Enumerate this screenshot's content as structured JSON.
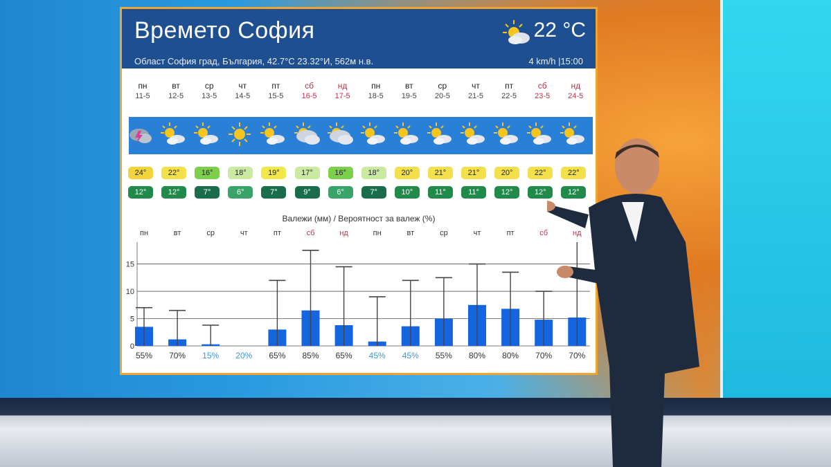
{
  "panel": {
    "title": "Времето София",
    "subtitle": "Област София град, България, 42.7°С 23.32°И, 562м н.в.",
    "current_temp": "22 °C",
    "wind_time": "4 km/h |15:00",
    "current_icon": "sun-cloud-icon"
  },
  "days": [
    {
      "dn": "пн",
      "dd": "11-5",
      "weekend": false,
      "icon": "thunder-cloud-icon",
      "max": "24°",
      "min": "12°",
      "max_color": "#f3d53b",
      "min_color": "#1f8a4a"
    },
    {
      "dn": "вт",
      "dd": "12-5",
      "weekend": false,
      "icon": "sun-cloud-icon",
      "max": "22°",
      "min": "12°",
      "max_color": "#f3e04a",
      "min_color": "#1f8a4a"
    },
    {
      "dn": "ср",
      "dd": "13-5",
      "weekend": false,
      "icon": "sun-cloud-icon",
      "max": "16°",
      "min": "7°",
      "max_color": "#7cd04a",
      "min_color": "#1a6d4a"
    },
    {
      "dn": "чт",
      "dd": "14-5",
      "weekend": false,
      "icon": "sun-icon",
      "max": "18°",
      "min": "6°",
      "max_color": "#c9eaa0",
      "min_color": "#3aa36a"
    },
    {
      "dn": "пт",
      "dd": "15-5",
      "weekend": false,
      "icon": "sun-cloud-icon",
      "max": "19°",
      "min": "7°",
      "max_color": "#f3e84a",
      "min_color": "#1a6d4a"
    },
    {
      "dn": "сб",
      "dd": "16-5",
      "weekend": true,
      "icon": "cloudy-icon",
      "max": "17°",
      "min": "9°",
      "max_color": "#c9eaa0",
      "min_color": "#1a6d4a"
    },
    {
      "dn": "нд",
      "dd": "17-5",
      "weekend": true,
      "icon": "cloudy-icon",
      "max": "16°",
      "min": "6°",
      "max_color": "#7cd04a",
      "min_color": "#3aa36a"
    },
    {
      "dn": "пн",
      "dd": "18-5",
      "weekend": false,
      "icon": "sun-cloud-icon",
      "max": "18°",
      "min": "7°",
      "max_color": "#c9eaa0",
      "min_color": "#1a6d4a"
    },
    {
      "dn": "вт",
      "dd": "19-5",
      "weekend": false,
      "icon": "sun-cloud-icon",
      "max": "20°",
      "min": "10°",
      "max_color": "#f3e04a",
      "min_color": "#1f8a4a"
    },
    {
      "dn": "ср",
      "dd": "20-5",
      "weekend": false,
      "icon": "sun-cloud-icon",
      "max": "21°",
      "min": "11°",
      "max_color": "#f3e04a",
      "min_color": "#1f8a4a"
    },
    {
      "dn": "чт",
      "dd": "21-5",
      "weekend": false,
      "icon": "sun-cloud-icon",
      "max": "21°",
      "min": "11°",
      "max_color": "#f3e04a",
      "min_color": "#1f8a4a"
    },
    {
      "dn": "пт",
      "dd": "22-5",
      "weekend": false,
      "icon": "sun-cloud-icon",
      "max": "20°",
      "min": "12°",
      "max_color": "#f3e04a",
      "min_color": "#1f8a4a"
    },
    {
      "dn": "сб",
      "dd": "23-5",
      "weekend": true,
      "icon": "sun-cloud-icon",
      "max": "22°",
      "min": "12°",
      "max_color": "#f3e04a",
      "min_color": "#1f8a4a"
    },
    {
      "dn": "нд",
      "dd": "24-5",
      "weekend": true,
      "icon": "sun-cloud-icon",
      "max": "22°",
      "min": "12°",
      "max_color": "#f3e04a",
      "min_color": "#1f8a4a"
    }
  ],
  "chart_data": {
    "type": "bar",
    "title": "Валежи (мм) / Вероятност за валеж (%)",
    "categories": [
      "пн",
      "вт",
      "ср",
      "чт",
      "пт",
      "сб",
      "нд",
      "пн",
      "вт",
      "ср",
      "чт",
      "пт",
      "сб",
      "нд"
    ],
    "weekend": [
      false,
      false,
      false,
      false,
      false,
      true,
      true,
      false,
      false,
      false,
      false,
      false,
      true,
      true
    ],
    "yticks": [
      0,
      5,
      10,
      15
    ],
    "ylim": [
      0,
      19
    ],
    "series": [
      {
        "values": [
          3.5,
          1.2,
          0.3,
          0,
          3.0,
          6.5,
          3.8,
          0.8,
          3.6,
          5.0,
          7.5,
          6.8,
          4.8,
          5.2
        ]
      }
    ],
    "error_high": [
      7,
      6.5,
      3.8,
      0,
      12,
      17.5,
      14.5,
      9,
      12,
      12.5,
      15,
      13.5,
      10,
      19
    ],
    "probability": [
      "55%",
      "70%",
      "15%",
      "20%",
      "65%",
      "85%",
      "65%",
      "45%",
      "45%",
      "55%",
      "80%",
      "80%",
      "70%",
      "70%"
    ],
    "prob_colors": [
      "#333",
      "#333",
      "#3a9ad9",
      "#3a9ad9",
      "#333",
      "#333",
      "#333",
      "#3a9ad9",
      "#3a9ad9",
      "#333",
      "#333",
      "#333",
      "#333",
      "#333"
    ],
    "bar_color": "#1565e0",
    "grid": true
  }
}
